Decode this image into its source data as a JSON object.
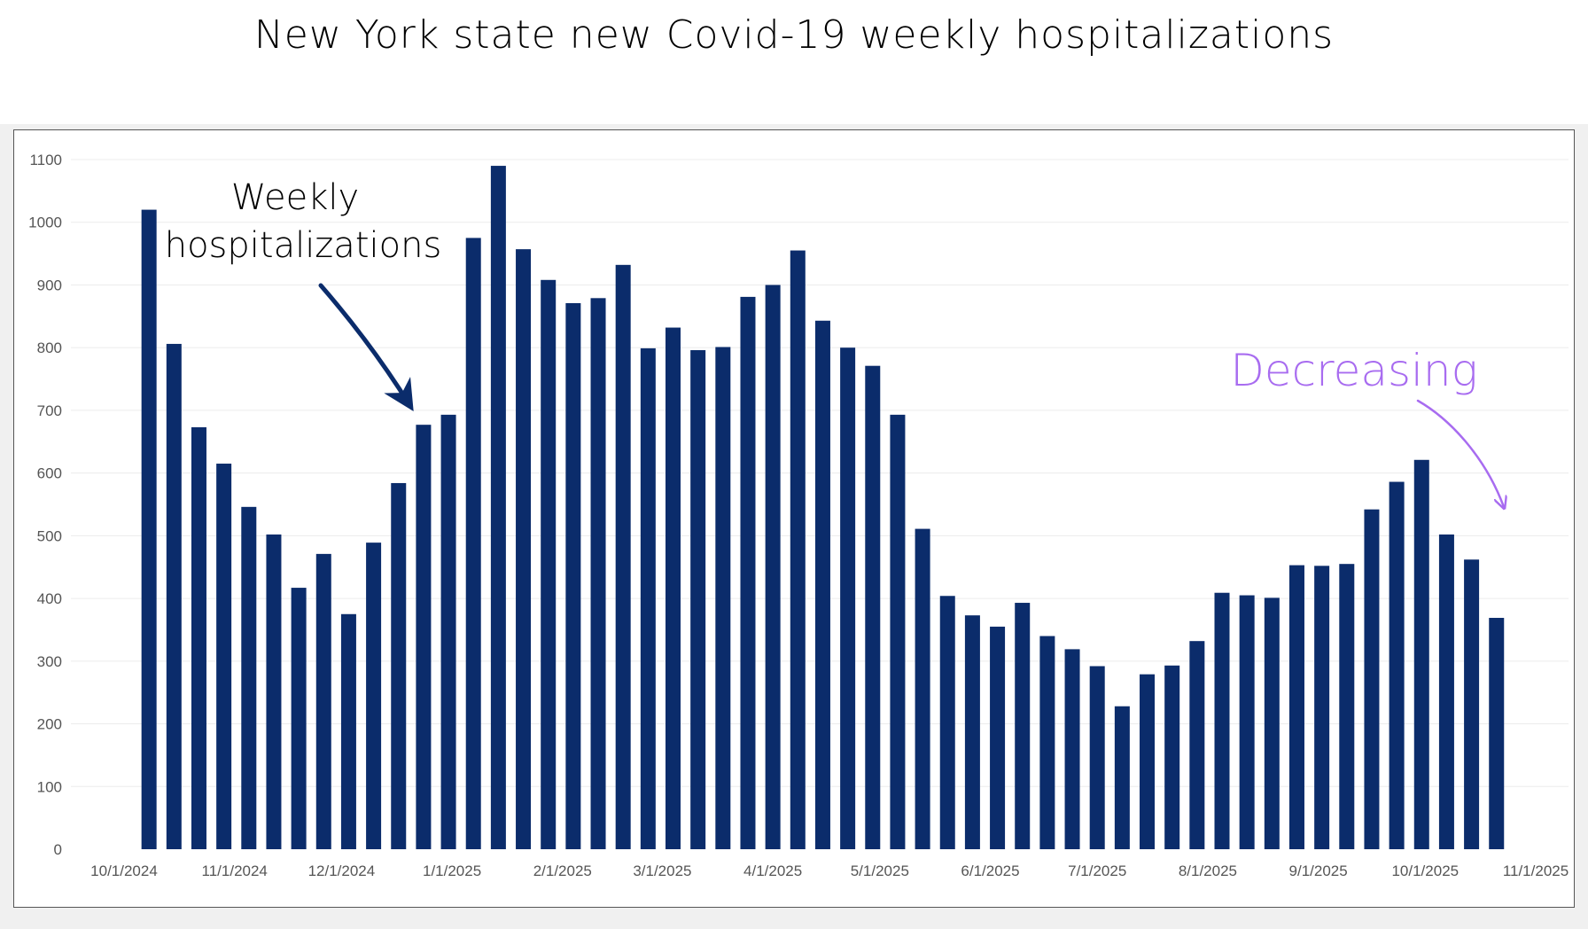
{
  "chart_data": {
    "type": "bar",
    "title": "New York state new Covid-19 weekly hospitalizations",
    "xlabel": "",
    "ylabel": "",
    "ylim": [
      0,
      1100
    ],
    "y_ticks": [
      0,
      100,
      200,
      300,
      400,
      500,
      600,
      700,
      800,
      900,
      1000,
      1100
    ],
    "x_range": [
      "2024-10-01",
      "2025-11-01"
    ],
    "x_ticks": [
      {
        "date": "2024-10-01",
        "label": "10/1/2024"
      },
      {
        "date": "2024-11-01",
        "label": "11/1/2024"
      },
      {
        "date": "2024-12-01",
        "label": "12/1/2024"
      },
      {
        "date": "2025-01-01",
        "label": "1/1/2025"
      },
      {
        "date": "2025-02-01",
        "label": "2/1/2025"
      },
      {
        "date": "2025-03-01",
        "label": "3/1/2025"
      },
      {
        "date": "2025-04-01",
        "label": "4/1/2025"
      },
      {
        "date": "2025-05-01",
        "label": "5/1/2025"
      },
      {
        "date": "2025-06-01",
        "label": "6/1/2025"
      },
      {
        "date": "2025-07-01",
        "label": "7/1/2025"
      },
      {
        "date": "2025-08-01",
        "label": "8/1/2025"
      },
      {
        "date": "2025-09-01",
        "label": "9/1/2025"
      },
      {
        "date": "2025-10-01",
        "label": "10/1/2025"
      },
      {
        "date": "2025-11-01",
        "label": "11/1/2025"
      }
    ],
    "x": [
      "2024-10-08",
      "2024-10-15",
      "2024-10-22",
      "2024-10-29",
      "2024-11-05",
      "2024-11-12",
      "2024-11-19",
      "2024-11-26",
      "2024-12-03",
      "2024-12-10",
      "2024-12-17",
      "2024-12-24",
      "2024-12-31",
      "2025-01-07",
      "2025-01-14",
      "2025-01-21",
      "2025-01-28",
      "2025-02-04",
      "2025-02-11",
      "2025-02-18",
      "2025-02-25",
      "2025-03-04",
      "2025-03-11",
      "2025-03-18",
      "2025-03-25",
      "2025-04-01",
      "2025-04-08",
      "2025-04-15",
      "2025-04-22",
      "2025-04-29",
      "2025-05-06",
      "2025-05-13",
      "2025-05-20",
      "2025-05-27",
      "2025-06-03",
      "2025-06-10",
      "2025-06-17",
      "2025-06-24",
      "2025-07-01",
      "2025-07-08",
      "2025-07-15",
      "2025-07-22",
      "2025-07-29",
      "2025-08-05",
      "2025-08-12",
      "2025-08-19",
      "2025-08-26",
      "2025-09-02",
      "2025-09-09",
      "2025-09-16",
      "2025-09-23",
      "2025-09-30",
      "2025-10-07",
      "2025-10-14",
      "2025-10-21"
    ],
    "values": [
      1020,
      806,
      673,
      615,
      546,
      502,
      417,
      471,
      375,
      489,
      584,
      677,
      693,
      975,
      1090,
      957,
      908,
      871,
      879,
      932,
      799,
      832,
      796,
      801,
      881,
      900,
      955,
      843,
      800,
      771,
      693,
      511,
      404,
      373,
      355,
      393,
      340,
      319,
      292,
      228,
      279,
      293,
      332,
      409,
      405,
      401,
      453,
      452,
      455,
      542,
      586,
      621,
      502,
      462,
      369
    ],
    "bar_color": "#0b2c6b",
    "grid": true,
    "legend": "none",
    "annotations": [
      {
        "text_lines": [
          "Weekly",
          "hospitalizations"
        ],
        "color": "#000000",
        "arrow_color": "#0b2c6b",
        "points_to": {
          "x": "2024-12-31",
          "y": 700
        }
      },
      {
        "text": "Decreasing",
        "color": "#a86cf0",
        "points_to": {
          "x": "2025-10-22",
          "y": 540
        }
      }
    ]
  }
}
